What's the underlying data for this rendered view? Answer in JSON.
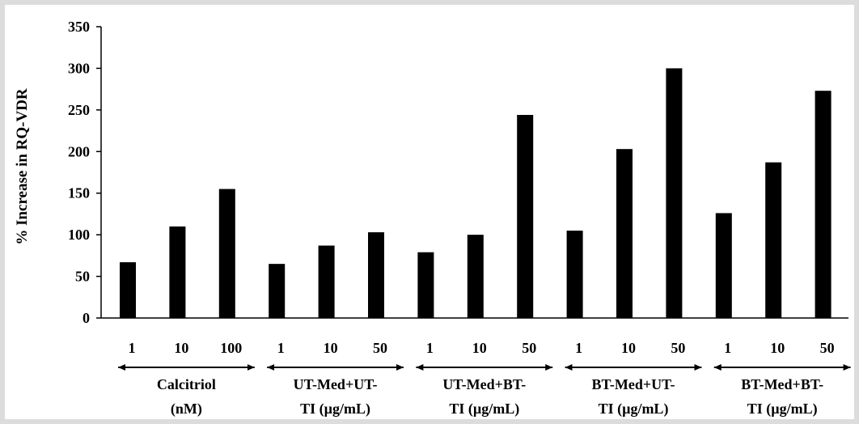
{
  "chart_data": {
    "type": "bar",
    "ylabel": "% Increase in RQ-VDR",
    "ylim": [
      0,
      350
    ],
    "yticks": [
      0,
      50,
      100,
      150,
      200,
      250,
      300,
      350
    ],
    "grid": false,
    "legend": "none",
    "bar_color": "#000000",
    "groups": [
      {
        "label_lines": [
          "Calcitriol",
          "(nM)"
        ],
        "categories": [
          "1",
          "10",
          "100"
        ],
        "values": [
          67,
          110,
          155
        ]
      },
      {
        "label_lines": [
          "UT-Med+UT-",
          "TI (µg/mL)"
        ],
        "categories": [
          "1",
          "10",
          "50"
        ],
        "values": [
          65,
          87,
          103
        ]
      },
      {
        "label_lines": [
          "UT-Med+BT-",
          "TI (µg/mL)"
        ],
        "categories": [
          "1",
          "10",
          "50"
        ],
        "values": [
          79,
          100,
          244
        ]
      },
      {
        "label_lines": [
          "BT-Med+UT-",
          "TI (µg/mL)"
        ],
        "categories": [
          "1",
          "10",
          "50"
        ],
        "values": [
          105,
          203,
          300
        ]
      },
      {
        "label_lines": [
          "BT-Med+BT-",
          "TI (µg/mL)"
        ],
        "categories": [
          "1",
          "10",
          "50"
        ],
        "values": [
          126,
          187,
          273
        ]
      }
    ]
  }
}
